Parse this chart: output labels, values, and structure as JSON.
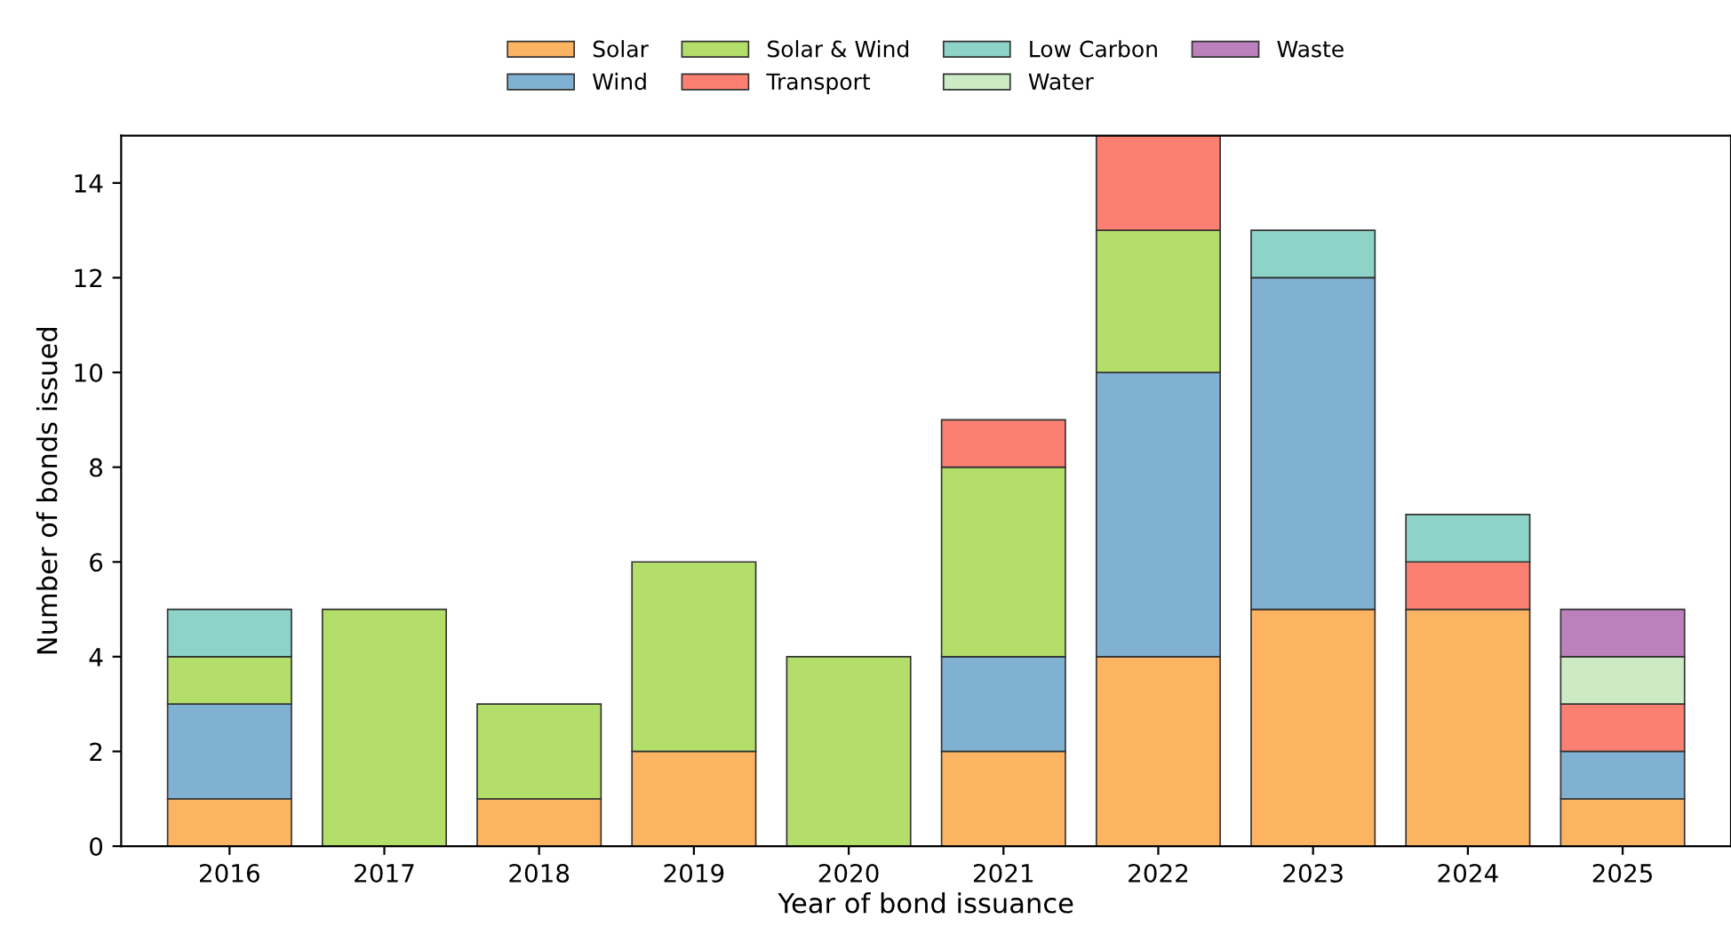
{
  "chart_data": {
    "type": "bar",
    "stacked": true,
    "xlabel": "Year of bond issuance",
    "ylabel": "Number of bonds issued",
    "categories": [
      "2016",
      "2017",
      "2018",
      "2019",
      "2020",
      "2021",
      "2022",
      "2023",
      "2024",
      "2025"
    ],
    "series": [
      {
        "name": "Solar",
        "color": "#fdb462",
        "values": [
          1,
          null,
          1,
          2,
          null,
          2,
          4,
          5,
          5,
          1
        ]
      },
      {
        "name": "Wind",
        "color": "#80b1d3",
        "values": [
          2,
          null,
          null,
          null,
          null,
          2,
          6,
          7,
          null,
          1
        ]
      },
      {
        "name": "Solar & Wind",
        "color": "#b3de69",
        "values": [
          1,
          5,
          2,
          4,
          4,
          4,
          3,
          null,
          null,
          null
        ]
      },
      {
        "name": "Transport",
        "color": "#fb8072",
        "values": [
          null,
          null,
          null,
          null,
          null,
          1,
          2,
          null,
          1,
          1
        ]
      },
      {
        "name": "Low Carbon",
        "color": "#8dd3c7",
        "values": [
          1,
          null,
          null,
          null,
          null,
          null,
          null,
          1,
          1,
          null
        ]
      },
      {
        "name": "Water",
        "color": "#ccebc5",
        "values": [
          null,
          null,
          null,
          null,
          null,
          null,
          null,
          null,
          null,
          1
        ]
      },
      {
        "name": "Waste",
        "color": "#bc80bd",
        "values": [
          null,
          null,
          null,
          null,
          null,
          null,
          null,
          null,
          null,
          1
        ]
      }
    ],
    "ylim": [
      0,
      15
    ],
    "yticks": [
      0,
      2,
      4,
      6,
      8,
      10,
      12,
      14
    ],
    "grid": false,
    "legend": "top"
  }
}
